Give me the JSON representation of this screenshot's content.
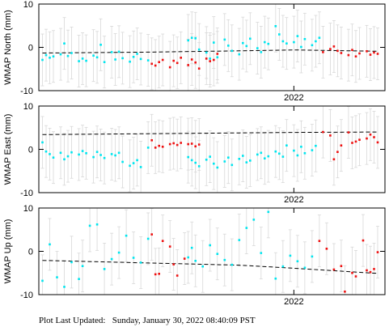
{
  "chart_data": [
    {
      "type": "scatter",
      "title": "",
      "ylabel": "WMAP North (mm)",
      "xlabel": "",
      "x_tick_label": "2022",
      "x_range": [
        2021.3,
        2022.25
      ],
      "x_tick": 2022.0,
      "ylim": [
        -10,
        10
      ],
      "yticks": [
        -10,
        0,
        10
      ],
      "series": [
        {
          "color": "#00e5ee",
          "x": [
            2021.31,
            2021.32,
            2021.33,
            2021.34,
            2021.36,
            2021.37,
            2021.38,
            2021.39,
            2021.41,
            2021.42,
            2021.43,
            2021.45,
            2021.46,
            2021.47,
            2021.48,
            2021.5,
            2021.51,
            2021.52,
            2021.53,
            2021.55,
            2021.56,
            2021.57,
            2021.58,
            2021.6,
            2021.71,
            2021.72,
            2021.73,
            2021.74,
            2021.76,
            2021.77,
            2021.78,
            2021.79,
            2021.81,
            2021.82,
            2021.83,
            2021.85,
            2021.86,
            2021.87,
            2021.88,
            2021.9,
            2021.91,
            2021.92,
            2021.93,
            2021.95,
            2021.96,
            2021.97,
            2021.98,
            2022.0,
            2022.01,
            2022.02,
            2022.03,
            2022.05,
            2022.06,
            2022.07
          ],
          "y": [
            -2.9,
            -1.8,
            -2.4,
            -2.1,
            -1.6,
            0.9,
            -2.0,
            -1.3,
            -3.2,
            -2.6,
            -3.1,
            -1.9,
            -2.3,
            0.6,
            -3.4,
            -1.1,
            -2.8,
            -1.0,
            -2.5,
            -3.3,
            -2.2,
            -1.5,
            -2.7,
            -3.0,
            1.6,
            2.2,
            2.1,
            -0.5,
            -1.2,
            -2.6,
            1.1,
            -2.3,
            1.8,
            0.4,
            -0.8,
            -1.6,
            1.0,
            0.3,
            2.0,
            -0.2,
            -1.1,
            1.2,
            0.8,
            4.9,
            3.0,
            1.4,
            0.9,
            1.2,
            2.6,
            0.1,
            1.9,
            0.5,
            1.4,
            2.2
          ]
        },
        {
          "color": "#ee1111",
          "x": [
            2021.61,
            2021.62,
            2021.63,
            2021.64,
            2021.66,
            2021.67,
            2021.68,
            2021.69,
            2021.71,
            2021.72,
            2021.73,
            2021.74,
            2021.76,
            2021.77,
            2021.78,
            2021.79,
            2022.08,
            2022.1,
            2022.11,
            2022.12,
            2022.13,
            2022.15,
            2022.16,
            2022.17,
            2022.18,
            2022.2,
            2022.21,
            2022.22,
            2022.23
          ],
          "y": [
            -3.8,
            -4.2,
            -3.4,
            -2.9,
            -4.6,
            -3.1,
            -3.6,
            -2.4,
            -4.1,
            -2.8,
            -3.5,
            -4.9,
            -2.6,
            -3.2,
            -2.9,
            -1.5,
            -1.1,
            -0.4,
            0.2,
            -0.8,
            -1.3,
            -1.8,
            -0.6,
            -2.1,
            -1.4,
            -0.9,
            -1.7,
            -1.2,
            -1.5
          ]
        }
      ],
      "trend": [
        [
          2021.31,
          -1.3
        ],
        [
          2021.6,
          -1.1
        ],
        [
          2021.85,
          -0.8
        ],
        [
          2022.0,
          -0.6
        ],
        [
          2022.23,
          -0.9
        ]
      ]
    },
    {
      "type": "scatter",
      "title": "",
      "ylabel": "WMAP East (mm)",
      "xlabel": "",
      "x_tick_label": "2022",
      "x_range": [
        2021.3,
        2022.25
      ],
      "x_tick": 2022.0,
      "ylim": [
        -10,
        10
      ],
      "yticks": [
        -10,
        0,
        10
      ],
      "series": [
        {
          "color": "#00e5ee",
          "x": [
            2021.31,
            2021.32,
            2021.33,
            2021.34,
            2021.36,
            2021.37,
            2021.38,
            2021.39,
            2021.41,
            2021.42,
            2021.43,
            2021.45,
            2021.46,
            2021.47,
            2021.48,
            2021.5,
            2021.51,
            2021.52,
            2021.53,
            2021.55,
            2021.56,
            2021.57,
            2021.58,
            2021.6,
            2021.71,
            2021.72,
            2021.73,
            2021.74,
            2021.76,
            2021.77,
            2021.78,
            2021.79,
            2021.81,
            2021.82,
            2021.83,
            2021.85,
            2021.86,
            2021.87,
            2021.88,
            2021.9,
            2021.91,
            2021.92,
            2021.93,
            2021.95,
            2021.96,
            2021.97,
            2021.98,
            2022.0,
            2022.01,
            2022.02,
            2022.03,
            2022.05,
            2022.06
          ],
          "y": [
            1.6,
            -0.5,
            -1.1,
            -1.9,
            -0.8,
            -2.3,
            -1.6,
            -0.7,
            -1.2,
            -0.4,
            -0.9,
            -1.8,
            -0.6,
            -1.3,
            -2.0,
            -1.1,
            -1.4,
            -0.8,
            -2.9,
            -3.8,
            -3.2,
            -2.5,
            -4.1,
            0.4,
            -1.8,
            -2.5,
            -3.1,
            -3.9,
            -2.4,
            -1.7,
            -3.3,
            -4.2,
            -2.8,
            -1.9,
            -3.6,
            -2.2,
            -1.5,
            -3.0,
            -2.6,
            -1.2,
            -0.8,
            -2.1,
            -1.6,
            -0.5,
            -1.0,
            -1.7,
            0.9,
            -0.3,
            -1.4,
            0.6,
            -0.9,
            -0.2,
            0.8
          ]
        },
        {
          "color": "#ee1111",
          "x": [
            2021.61,
            2021.62,
            2021.63,
            2021.64,
            2021.66,
            2021.67,
            2021.68,
            2021.69,
            2021.71,
            2021.72,
            2021.73,
            2021.74,
            2022.08,
            2022.1,
            2022.11,
            2022.12,
            2022.13,
            2022.15,
            2022.16,
            2022.17,
            2022.18,
            2022.2,
            2022.21,
            2022.22,
            2022.23
          ],
          "y": [
            2.1,
            0.4,
            0.8,
            0.6,
            1.2,
            1.4,
            1.0,
            1.5,
            1.2,
            1.3,
            0.7,
            1.1,
            4.0,
            3.2,
            -2.3,
            -0.6,
            0.9,
            3.9,
            1.5,
            1.8,
            2.2,
            2.5,
            3.4,
            2.8,
            1.6
          ]
        }
      ],
      "trend": [
        [
          2021.31,
          3.4
        ],
        [
          2021.6,
          3.6
        ],
        [
          2021.85,
          3.8
        ],
        [
          2022.0,
          3.9
        ],
        [
          2022.23,
          4.0
        ]
      ]
    },
    {
      "type": "scatter",
      "title": "",
      "ylabel": "WMAP Up (mm)",
      "xlabel": "",
      "x_tick_label": "2022",
      "x_range": [
        2021.3,
        2022.25
      ],
      "x_tick": 2022.0,
      "ylim": [
        -10,
        10
      ],
      "yticks": [
        -10,
        0,
        10
      ],
      "series": [
        {
          "color": "#00e5ee",
          "x": [
            2021.31,
            2021.33,
            2021.35,
            2021.37,
            2021.39,
            2021.41,
            2021.42,
            2021.44,
            2021.46,
            2021.48,
            2021.5,
            2021.52,
            2021.54,
            2021.56,
            2021.58,
            2021.6,
            2021.71,
            2021.72,
            2021.73,
            2021.75,
            2021.77,
            2021.79,
            2021.81,
            2021.83,
            2021.85,
            2021.87,
            2021.89,
            2021.91,
            2021.93,
            2021.95,
            2021.97,
            2021.99,
            2022.01,
            2022.03,
            2022.05
          ],
          "y": [
            -6.8,
            1.6,
            -6.0,
            -8.2,
            -2.5,
            -6.4,
            -3.4,
            5.9,
            6.2,
            -4.1,
            -1.8,
            -0.3,
            3.6,
            -1.5,
            -2.6,
            2.9,
            -1.4,
            0.8,
            -2.2,
            -3.5,
            1.4,
            -0.6,
            -2.0,
            -3.1,
            2.6,
            5.4,
            7.3,
            -0.4,
            9.1,
            -6.3,
            -3.5,
            -1.0,
            -2.3,
            -3.8,
            -1.2
          ]
        },
        {
          "color": "#ee1111",
          "x": [
            2021.61,
            2021.62,
            2021.63,
            2021.64,
            2021.66,
            2021.67,
            2021.68,
            2021.7,
            2022.07,
            2022.09,
            2022.11,
            2022.13,
            2022.14,
            2022.16,
            2022.17,
            2022.19,
            2022.2,
            2022.21,
            2022.22,
            2022.23
          ],
          "y": [
            3.9,
            -5.3,
            -5.2,
            2.4,
            1.1,
            -3.0,
            -5.6,
            -1.7,
            2.4,
            0.6,
            -4.2,
            -3.4,
            -9.3,
            -5.0,
            -5.8,
            2.5,
            -4.4,
            -4.8,
            -4.1,
            -0.2
          ]
        }
      ],
      "trend": [
        [
          2021.31,
          -2.1
        ],
        [
          2021.6,
          -2.7
        ],
        [
          2021.85,
          -3.2
        ],
        [
          2022.0,
          -3.9
        ],
        [
          2022.23,
          -5.1
        ]
      ]
    }
  ],
  "footer": {
    "label": "Plot Last Updated:",
    "timestamp": "Sunday, January 30, 2022 08:40:09 PST"
  },
  "colors": {
    "point_blue": "#00e5ee",
    "point_red": "#ee1111",
    "error_bar": "#d8d8d8",
    "trend": "#000000"
  }
}
